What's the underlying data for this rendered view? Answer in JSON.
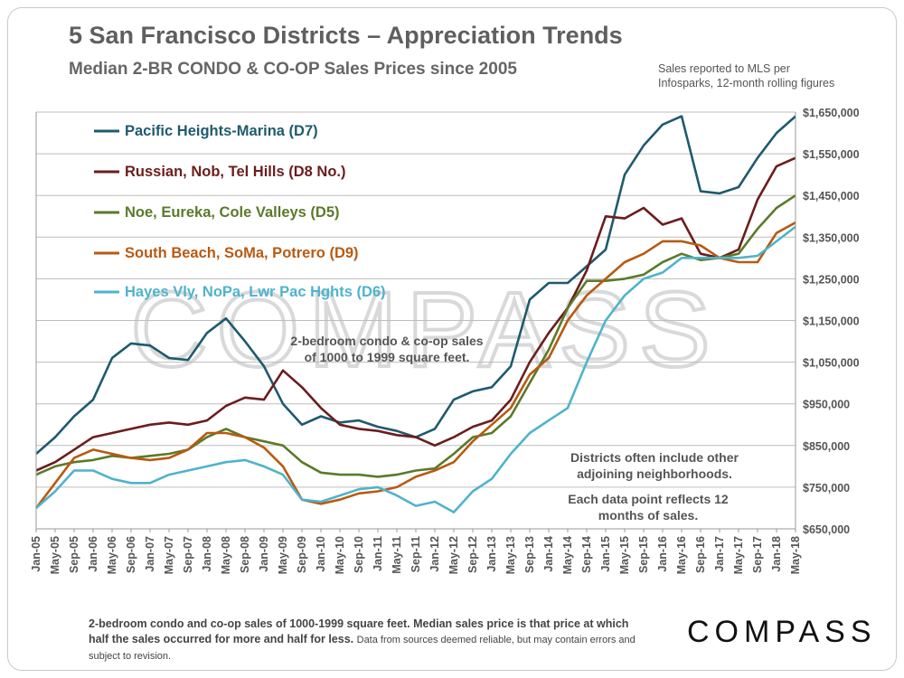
{
  "title": "5 San Francisco Districts – Appreciation Trends",
  "subtitle": "Median 2-BR CONDO & CO-OP Sales Prices since 2005",
  "note_top": "Sales reported to MLS per\nInfosparks, 12-month rolling figures",
  "annotations": {
    "center": [
      "2-bedroom condo & co-op sales",
      "of 1000 to 1999 square feet."
    ],
    "right1": [
      "Districts often include other",
      "adjoining neighborhoods."
    ],
    "right2": [
      "Each data point reflects 12",
      "months of sales."
    ]
  },
  "footer": {
    "main": "2-bedroom condo and co-op sales of 1000-1999 square feet. Median sales price is that price at which half the sales occurred for more and half for less.",
    "small": "Data from sources deemed reliable, but may contain errors and subject to revision."
  },
  "watermark": "COMPASS",
  "logo": "COMPASS",
  "colors": {
    "d7": "#1f5a6e",
    "d8": "#6b1d1d",
    "d5": "#5b7a2a",
    "d9": "#b85a12",
    "d6": "#4fb3cc",
    "grid": "#bdbdbd",
    "axis_text": "#555555"
  },
  "chart_data": {
    "type": "line",
    "x_start": "2005-01",
    "x_end": "2018-05",
    "x_ticks": [
      "Jan-05",
      "May-05",
      "Sep-05",
      "Jan-06",
      "May-06",
      "Sep-06",
      "Jan-07",
      "May-07",
      "Sep-07",
      "Jan-08",
      "May-08",
      "Sep-08",
      "Jan-09",
      "May-09",
      "Sep-09",
      "Jan-10",
      "May-10",
      "Sep-10",
      "Jan-11",
      "May-11",
      "Sep-11",
      "Jan-12",
      "May-12",
      "Sep-12",
      "Jan-13",
      "May-13",
      "Sep-13",
      "Jan-14",
      "May-14",
      "Sep-14",
      "Jan-15",
      "May-15",
      "Sep-15",
      "Jan-16",
      "May-16",
      "Sep-16",
      "Jan-17",
      "May-17",
      "Sep-17",
      "Jan-18",
      "May-18"
    ],
    "y_ticks": [
      "$650,000",
      "$750,000",
      "$850,000",
      "$950,000",
      "$1,050,000",
      "$1,150,000",
      "$1,250,000",
      "$1,350,000",
      "$1,450,000",
      "$1,550,000",
      "$1,650,000"
    ],
    "ylim": [
      650000,
      1650000
    ],
    "grid": "horizontal",
    "legend_position": "top-left",
    "series": [
      {
        "name": "Pacific Heights-Marina (D7)",
        "color_key": "d7",
        "points": [
          [
            "2005-01",
            830000
          ],
          [
            "2005-05",
            870000
          ],
          [
            "2005-09",
            920000
          ],
          [
            "2006-01",
            960000
          ],
          [
            "2006-05",
            1060000
          ],
          [
            "2006-09",
            1095000
          ],
          [
            "2007-01",
            1090000
          ],
          [
            "2007-05",
            1060000
          ],
          [
            "2007-09",
            1055000
          ],
          [
            "2008-01",
            1120000
          ],
          [
            "2008-05",
            1155000
          ],
          [
            "2008-09",
            1100000
          ],
          [
            "2009-01",
            1040000
          ],
          [
            "2009-05",
            950000
          ],
          [
            "2009-09",
            900000
          ],
          [
            "2010-01",
            920000
          ],
          [
            "2010-05",
            905000
          ],
          [
            "2010-09",
            910000
          ],
          [
            "2011-01",
            895000
          ],
          [
            "2011-05",
            885000
          ],
          [
            "2011-09",
            870000
          ],
          [
            "2012-01",
            890000
          ],
          [
            "2012-05",
            960000
          ],
          [
            "2012-09",
            980000
          ],
          [
            "2013-01",
            990000
          ],
          [
            "2013-05",
            1040000
          ],
          [
            "2013-09",
            1200000
          ],
          [
            "2014-01",
            1240000
          ],
          [
            "2014-05",
            1240000
          ],
          [
            "2014-09",
            1280000
          ],
          [
            "2015-01",
            1320000
          ],
          [
            "2015-05",
            1500000
          ],
          [
            "2015-09",
            1570000
          ],
          [
            "2016-01",
            1620000
          ],
          [
            "2016-05",
            1640000
          ],
          [
            "2016-09",
            1460000
          ],
          [
            "2017-01",
            1455000
          ],
          [
            "2017-05",
            1470000
          ],
          [
            "2017-09",
            1540000
          ],
          [
            "2018-01",
            1600000
          ],
          [
            "2018-05",
            1640000
          ]
        ]
      },
      {
        "name": "Russian, Nob, Tel Hills (D8 No.)",
        "color_key": "d8",
        "points": [
          [
            "2005-01",
            790000
          ],
          [
            "2005-05",
            810000
          ],
          [
            "2005-09",
            840000
          ],
          [
            "2006-01",
            870000
          ],
          [
            "2006-05",
            880000
          ],
          [
            "2006-09",
            890000
          ],
          [
            "2007-01",
            900000
          ],
          [
            "2007-05",
            905000
          ],
          [
            "2007-09",
            900000
          ],
          [
            "2008-01",
            910000
          ],
          [
            "2008-05",
            945000
          ],
          [
            "2008-09",
            965000
          ],
          [
            "2009-01",
            960000
          ],
          [
            "2009-05",
            1030000
          ],
          [
            "2009-09",
            990000
          ],
          [
            "2010-01",
            940000
          ],
          [
            "2010-05",
            900000
          ],
          [
            "2010-09",
            890000
          ],
          [
            "2011-01",
            885000
          ],
          [
            "2011-05",
            875000
          ],
          [
            "2011-09",
            870000
          ],
          [
            "2012-01",
            850000
          ],
          [
            "2012-05",
            870000
          ],
          [
            "2012-09",
            895000
          ],
          [
            "2013-01",
            910000
          ],
          [
            "2013-05",
            960000
          ],
          [
            "2013-09",
            1050000
          ],
          [
            "2014-01",
            1120000
          ],
          [
            "2014-05",
            1180000
          ],
          [
            "2014-09",
            1270000
          ],
          [
            "2015-01",
            1400000
          ],
          [
            "2015-05",
            1395000
          ],
          [
            "2015-09",
            1420000
          ],
          [
            "2016-01",
            1380000
          ],
          [
            "2016-05",
            1395000
          ],
          [
            "2016-09",
            1310000
          ],
          [
            "2017-01",
            1300000
          ],
          [
            "2017-05",
            1320000
          ],
          [
            "2017-09",
            1440000
          ],
          [
            "2018-01",
            1520000
          ],
          [
            "2018-05",
            1540000
          ]
        ]
      },
      {
        "name": "Noe, Eureka, Cole Valleys (D5)",
        "color_key": "d5",
        "points": [
          [
            "2005-01",
            780000
          ],
          [
            "2005-05",
            800000
          ],
          [
            "2005-09",
            810000
          ],
          [
            "2006-01",
            815000
          ],
          [
            "2006-05",
            825000
          ],
          [
            "2006-09",
            820000
          ],
          [
            "2007-01",
            825000
          ],
          [
            "2007-05",
            830000
          ],
          [
            "2007-09",
            840000
          ],
          [
            "2008-01",
            870000
          ],
          [
            "2008-05",
            890000
          ],
          [
            "2008-09",
            870000
          ],
          [
            "2009-01",
            860000
          ],
          [
            "2009-05",
            850000
          ],
          [
            "2009-09",
            810000
          ],
          [
            "2010-01",
            785000
          ],
          [
            "2010-05",
            780000
          ],
          [
            "2010-09",
            780000
          ],
          [
            "2011-01",
            775000
          ],
          [
            "2011-05",
            780000
          ],
          [
            "2011-09",
            790000
          ],
          [
            "2012-01",
            795000
          ],
          [
            "2012-05",
            830000
          ],
          [
            "2012-09",
            870000
          ],
          [
            "2013-01",
            880000
          ],
          [
            "2013-05",
            920000
          ],
          [
            "2013-09",
            1000000
          ],
          [
            "2014-01",
            1080000
          ],
          [
            "2014-05",
            1180000
          ],
          [
            "2014-09",
            1245000
          ],
          [
            "2015-01",
            1245000
          ],
          [
            "2015-05",
            1250000
          ],
          [
            "2015-09",
            1260000
          ],
          [
            "2016-01",
            1290000
          ],
          [
            "2016-05",
            1310000
          ],
          [
            "2016-09",
            1295000
          ],
          [
            "2017-01",
            1300000
          ],
          [
            "2017-05",
            1310000
          ],
          [
            "2017-09",
            1370000
          ],
          [
            "2018-01",
            1420000
          ],
          [
            "2018-05",
            1450000
          ]
        ]
      },
      {
        "name": "South Beach, SoMa, Potrero (D9)",
        "color_key": "d9",
        "points": [
          [
            "2005-01",
            700000
          ],
          [
            "2005-05",
            760000
          ],
          [
            "2005-09",
            820000
          ],
          [
            "2006-01",
            840000
          ],
          [
            "2006-05",
            830000
          ],
          [
            "2006-09",
            820000
          ],
          [
            "2007-01",
            815000
          ],
          [
            "2007-05",
            820000
          ],
          [
            "2007-09",
            840000
          ],
          [
            "2008-01",
            880000
          ],
          [
            "2008-05",
            880000
          ],
          [
            "2008-09",
            870000
          ],
          [
            "2009-01",
            845000
          ],
          [
            "2009-05",
            800000
          ],
          [
            "2009-09",
            720000
          ],
          [
            "2010-01",
            710000
          ],
          [
            "2010-05",
            720000
          ],
          [
            "2010-09",
            735000
          ],
          [
            "2011-01",
            740000
          ],
          [
            "2011-05",
            750000
          ],
          [
            "2011-09",
            775000
          ],
          [
            "2012-01",
            790000
          ],
          [
            "2012-05",
            810000
          ],
          [
            "2012-09",
            860000
          ],
          [
            "2013-01",
            900000
          ],
          [
            "2013-05",
            940000
          ],
          [
            "2013-09",
            1020000
          ],
          [
            "2014-01",
            1060000
          ],
          [
            "2014-05",
            1150000
          ],
          [
            "2014-09",
            1210000
          ],
          [
            "2015-01",
            1250000
          ],
          [
            "2015-05",
            1290000
          ],
          [
            "2015-09",
            1310000
          ],
          [
            "2016-01",
            1340000
          ],
          [
            "2016-05",
            1340000
          ],
          [
            "2016-09",
            1330000
          ],
          [
            "2017-01",
            1300000
          ],
          [
            "2017-05",
            1290000
          ],
          [
            "2017-09",
            1290000
          ],
          [
            "2018-01",
            1360000
          ],
          [
            "2018-05",
            1385000
          ]
        ]
      },
      {
        "name": "Hayes Vly, NoPa, Lwr Pac Hghts (D6)",
        "color_key": "d6",
        "points": [
          [
            "2005-01",
            700000
          ],
          [
            "2005-05",
            740000
          ],
          [
            "2005-09",
            790000
          ],
          [
            "2006-01",
            790000
          ],
          [
            "2006-05",
            770000
          ],
          [
            "2006-09",
            760000
          ],
          [
            "2007-01",
            760000
          ],
          [
            "2007-05",
            780000
          ],
          [
            "2007-09",
            790000
          ],
          [
            "2008-01",
            800000
          ],
          [
            "2008-05",
            810000
          ],
          [
            "2008-09",
            815000
          ],
          [
            "2009-01",
            800000
          ],
          [
            "2009-05",
            780000
          ],
          [
            "2009-09",
            720000
          ],
          [
            "2010-01",
            715000
          ],
          [
            "2010-05",
            730000
          ],
          [
            "2010-09",
            745000
          ],
          [
            "2011-01",
            750000
          ],
          [
            "2011-05",
            730000
          ],
          [
            "2011-09",
            705000
          ],
          [
            "2012-01",
            715000
          ],
          [
            "2012-05",
            690000
          ],
          [
            "2012-09",
            740000
          ],
          [
            "2013-01",
            770000
          ],
          [
            "2013-05",
            830000
          ],
          [
            "2013-09",
            880000
          ],
          [
            "2014-01",
            910000
          ],
          [
            "2014-05",
            940000
          ],
          [
            "2014-09",
            1050000
          ],
          [
            "2015-01",
            1150000
          ],
          [
            "2015-05",
            1210000
          ],
          [
            "2015-09",
            1250000
          ],
          [
            "2016-01",
            1265000
          ],
          [
            "2016-05",
            1300000
          ],
          [
            "2016-09",
            1300000
          ],
          [
            "2017-01",
            1300000
          ],
          [
            "2017-05",
            1300000
          ],
          [
            "2017-09",
            1305000
          ],
          [
            "2018-01",
            1340000
          ],
          [
            "2018-05",
            1375000
          ]
        ]
      }
    ]
  }
}
